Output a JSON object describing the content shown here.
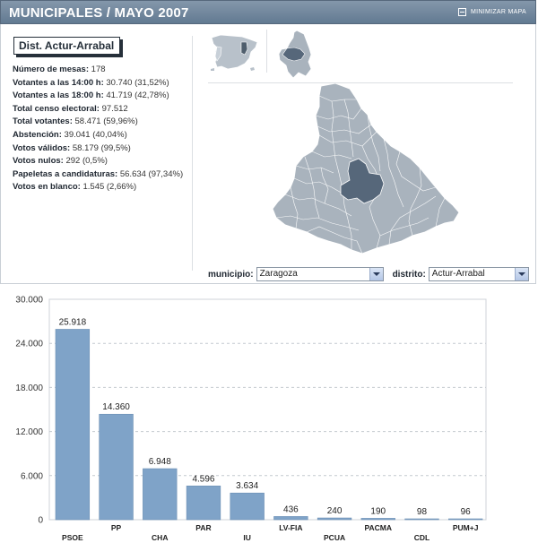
{
  "header": {
    "title": "MUNICIPALES / MAYO 2007",
    "minimize_label": "MINIMIZAR MAPA",
    "bg_color": "#6e849b"
  },
  "district_badge": "Dist. Actur-Arrabal",
  "stats": [
    {
      "label": "Número de mesas:",
      "value": "178"
    },
    {
      "label": "Votantes a las 14:00 h:",
      "value": "30.740 (31,52%)"
    },
    {
      "label": "Votantes a las 18:00 h:",
      "value": "41.719 (42,78%)"
    },
    {
      "label": "Total censo electoral:",
      "value": "97.512"
    },
    {
      "label": "Total votantes:",
      "value": "58.471  (59,96%)"
    },
    {
      "label": "Abstención:",
      "value": "39.041  (40,04%)"
    },
    {
      "label": "Votos válidos:",
      "value": "58.179  (99,5%)"
    },
    {
      "label": "Votos nulos:",
      "value": "292  (0,5%)"
    },
    {
      "label": "Papeletas a candidaturas:",
      "value": "56.634  (97,34%)"
    },
    {
      "label": "Votos en blanco:",
      "value": "1.545  (2,66%)"
    }
  ],
  "map": {
    "region_color": "#a9b3bd",
    "highlight_color": "#5a6a7a",
    "thumbnails": [
      "spain-map-icon",
      "zaragoza-province-map-icon"
    ]
  },
  "selectors": {
    "municipio": {
      "label": "municipio:",
      "value": "Zaragoza"
    },
    "distrito": {
      "label": "distrito:",
      "value": "Actur-Arrabal"
    }
  },
  "chart_data": {
    "type": "bar",
    "categories": [
      "PSOE",
      "PP",
      "CHA",
      "PAR",
      "IU",
      "LV-FIA",
      "PCUA",
      "PACMA",
      "CDL",
      "PUM+J"
    ],
    "values": [
      25918,
      14360,
      6948,
      4596,
      3634,
      436,
      240,
      190,
      98,
      96
    ],
    "value_labels": [
      "25.918",
      "14.360",
      "6.948",
      "4.596",
      "3.634",
      "436",
      "240",
      "190",
      "98",
      "96"
    ],
    "yticks": [
      0,
      6000,
      12000,
      18000,
      24000,
      30000
    ],
    "ytick_labels": [
      "0",
      "6.000",
      "12.000",
      "18.000",
      "24.000",
      "30.000"
    ],
    "ylim": [
      0,
      30000
    ],
    "bar_color": "#7fa3c8",
    "grid": true,
    "title": "",
    "xlabel": "",
    "ylabel": ""
  }
}
